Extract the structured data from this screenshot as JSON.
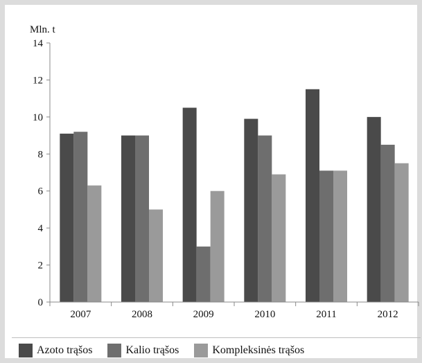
{
  "chart_data": {
    "type": "bar",
    "unit_label": "Mln. t",
    "categories": [
      "2007",
      "2008",
      "2009",
      "2010",
      "2011",
      "2012"
    ],
    "series": [
      {
        "name": "Azoto trąšos",
        "color": "#4a4a4a",
        "values": [
          9.1,
          9.0,
          10.5,
          9.9,
          11.5,
          10.0
        ]
      },
      {
        "name": "Kalio trąšos",
        "color": "#6e6e6e",
        "values": [
          9.2,
          9.0,
          3.0,
          9.0,
          7.1,
          8.5
        ]
      },
      {
        "name": "Kompleksinės trąšos",
        "color": "#9a9a9a",
        "values": [
          6.3,
          5.0,
          6.0,
          6.9,
          7.1,
          7.5
        ]
      }
    ],
    "ylim": [
      0,
      14
    ],
    "yticks": [
      "0",
      "2",
      "4",
      "6",
      "8",
      "10",
      "12",
      "14"
    ],
    "xlabel": "",
    "ylabel": "",
    "grid": false,
    "legend_position": "bottom"
  }
}
